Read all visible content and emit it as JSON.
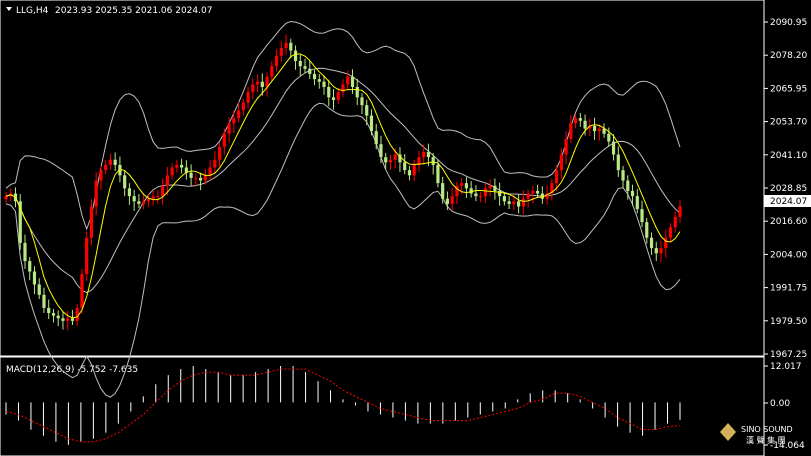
{
  "header": {
    "symbol": "LLG,H4",
    "ohlc": "2023.93 2025.35 2021.06 2024.07"
  },
  "price_axis": {
    "ticks": [
      "2090.95",
      "2078.20",
      "2065.95",
      "2053.70",
      "2041.10",
      "2028.85",
      "2016.60",
      "2004.00",
      "1991.75",
      "1979.50",
      "1967.25"
    ],
    "current_price": "2024.07"
  },
  "macd": {
    "label": "MACD(12,26,9) -5.752 -7.635",
    "ticks": [
      "12.017",
      "0.00",
      "-14.064"
    ]
  },
  "watermark": {
    "line1": "SINO SOUND",
    "line2": "漢 聲 集 團"
  },
  "colors": {
    "background": "#000000",
    "bull": "#FF0000",
    "bear": "#B8E986",
    "ma": "#FFFF00",
    "bands": "#BFBFBF",
    "macd_signal": "#FF0000",
    "macd_hist": "#FFFFFF"
  },
  "chart_data": [
    {
      "type": "candlestick",
      "title": "LLG,H4",
      "indicators": [
        "Bollinger Bands",
        "Moving Average"
      ],
      "ylim": [
        1967.25,
        2095
      ],
      "close": [
        2028,
        2029,
        2026,
        2010,
        2003,
        1999,
        1994,
        1990,
        1985,
        1983,
        1982,
        1981,
        1980,
        1981,
        1980,
        1985,
        1998,
        2012,
        2024,
        2034,
        2038,
        2040,
        2042,
        2040,
        2036,
        2031,
        2028,
        2026,
        2025,
        2026,
        2027,
        2028,
        2028,
        2032,
        2036,
        2039,
        2040,
        2039,
        2037,
        2035,
        2035,
        2034,
        2036,
        2039,
        2042,
        2047,
        2052,
        2056,
        2058,
        2061,
        2064,
        2068,
        2071,
        2072,
        2070,
        2074,
        2078,
        2082,
        2085,
        2087,
        2084,
        2080,
        2078,
        2077,
        2075,
        2073,
        2072,
        2070,
        2066,
        2065,
        2068,
        2071,
        2074,
        2070,
        2066,
        2063,
        2059,
        2053,
        2048,
        2043,
        2041,
        2042,
        2044,
        2041,
        2038,
        2036,
        2040,
        2043,
        2045,
        2043,
        2040,
        2033,
        2027,
        2025,
        2028,
        2032,
        2033,
        2031,
        2029,
        2028,
        2028,
        2031,
        2032,
        2030,
        2028,
        2026,
        2025,
        2026,
        2024,
        2027,
        2029,
        2030,
        2029,
        2027,
        2029,
        2033,
        2038,
        2044,
        2050,
        2056,
        2058,
        2057,
        2054,
        2055,
        2053,
        2054,
        2052,
        2049,
        2044,
        2038,
        2034,
        2030,
        2028,
        2023,
        2018,
        2012,
        2008,
        2006,
        2008,
        2012,
        2016,
        2020,
        2024.07
      ]
    },
    {
      "type": "line",
      "title": "MACD(12,26,9)",
      "series": [
        {
          "name": "MACD",
          "values": [
            -4,
            -6,
            -9,
            -11,
            -13,
            -14,
            -13,
            -12,
            -10,
            -7,
            -3,
            2,
            6,
            9,
            11,
            12,
            11,
            10,
            9,
            9,
            10,
            11,
            12,
            12,
            10,
            7,
            4,
            1,
            -1,
            -3,
            -4,
            -5,
            -6,
            -7,
            -7,
            -7,
            -6,
            -5,
            -4,
            -3,
            -2,
            1,
            3,
            4,
            4,
            3,
            1,
            -2,
            -5,
            -8,
            -10,
            -11,
            -9,
            -7,
            -5.752
          ]
        },
        {
          "name": "Signal",
          "values": [
            -3,
            -4,
            -6,
            -8,
            -10,
            -12,
            -13,
            -13,
            -12,
            -10,
            -7,
            -4,
            0,
            4,
            7,
            9,
            10,
            10,
            9,
            9,
            9,
            10,
            11,
            11,
            11,
            9,
            7,
            4,
            2,
            0,
            -2,
            -3,
            -4,
            -5,
            -6,
            -6,
            -6,
            -6,
            -5,
            -4,
            -3,
            -2,
            0,
            1,
            3,
            3,
            2,
            0,
            -2,
            -5,
            -7,
            -9,
            -9,
            -8,
            -7.635
          ]
        }
      ],
      "ylim": [
        -14.064,
        12.017
      ]
    }
  ]
}
